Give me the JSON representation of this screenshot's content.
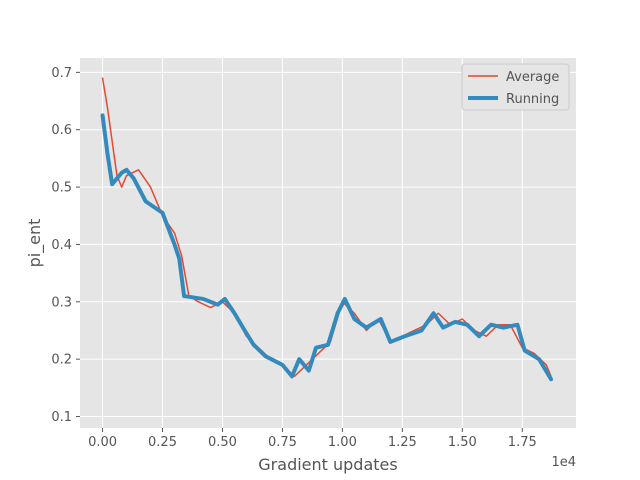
{
  "chart_data": {
    "type": "line",
    "title": "",
    "xlabel": "Gradient updates",
    "ylabel": "pi_ent",
    "x_offset_label": "1e4",
    "xlim": [
      -0.094,
      1.974
    ],
    "ylim": [
      0.08,
      0.725
    ],
    "x_ticks": [
      0.0,
      0.25,
      0.5,
      0.75,
      1.0,
      1.25,
      1.5,
      1.75
    ],
    "x_tick_labels": [
      "0.00",
      "0.25",
      "0.50",
      "0.75",
      "1.00",
      "1.25",
      "1.50",
      "1.75"
    ],
    "y_ticks": [
      0.1,
      0.2,
      0.3,
      0.4,
      0.5,
      0.6,
      0.7
    ],
    "y_tick_labels": [
      "0.1",
      "0.2",
      "0.3",
      "0.4",
      "0.5",
      "0.6",
      "0.7"
    ],
    "grid": true,
    "legend_position": "top-right",
    "series": [
      {
        "name": "Average",
        "color": "#E24A33",
        "linewidth": "thin",
        "x": [
          0.0,
          0.02,
          0.04,
          0.06,
          0.08,
          0.1,
          0.15,
          0.2,
          0.25,
          0.3,
          0.33,
          0.36,
          0.4,
          0.45,
          0.5,
          0.55,
          0.6,
          0.65,
          0.7,
          0.75,
          0.8,
          0.85,
          0.9,
          0.95,
          1.0,
          1.05,
          1.1,
          1.15,
          1.2,
          1.25,
          1.3,
          1.35,
          1.4,
          1.45,
          1.5,
          1.55,
          1.6,
          1.65,
          1.7,
          1.75,
          1.8,
          1.85,
          1.87
        ],
        "y": [
          0.69,
          0.64,
          0.58,
          0.52,
          0.5,
          0.52,
          0.53,
          0.5,
          0.45,
          0.42,
          0.38,
          0.31,
          0.3,
          0.29,
          0.3,
          0.28,
          0.24,
          0.22,
          0.2,
          0.19,
          0.17,
          0.19,
          0.21,
          0.23,
          0.3,
          0.28,
          0.25,
          0.27,
          0.23,
          0.24,
          0.25,
          0.26,
          0.28,
          0.26,
          0.27,
          0.25,
          0.24,
          0.26,
          0.26,
          0.22,
          0.21,
          0.19,
          0.17
        ]
      },
      {
        "name": "Running",
        "color": "#348ABD",
        "linewidth": "thick",
        "x": [
          0.0,
          0.02,
          0.04,
          0.08,
          0.1,
          0.13,
          0.18,
          0.25,
          0.3,
          0.32,
          0.34,
          0.42,
          0.48,
          0.51,
          0.55,
          0.6,
          0.63,
          0.68,
          0.75,
          0.79,
          0.82,
          0.86,
          0.89,
          0.94,
          0.98,
          1.01,
          1.05,
          1.1,
          1.16,
          1.2,
          1.26,
          1.33,
          1.38,
          1.42,
          1.47,
          1.52,
          1.57,
          1.62,
          1.67,
          1.73,
          1.76,
          1.82,
          1.87
        ],
        "y": [
          0.625,
          0.56,
          0.505,
          0.525,
          0.53,
          0.515,
          0.475,
          0.455,
          0.4,
          0.375,
          0.31,
          0.305,
          0.295,
          0.305,
          0.28,
          0.245,
          0.225,
          0.205,
          0.19,
          0.17,
          0.2,
          0.18,
          0.22,
          0.225,
          0.28,
          0.305,
          0.27,
          0.255,
          0.27,
          0.23,
          0.24,
          0.25,
          0.28,
          0.255,
          0.265,
          0.26,
          0.24,
          0.26,
          0.255,
          0.26,
          0.215,
          0.2,
          0.165
        ]
      }
    ]
  }
}
